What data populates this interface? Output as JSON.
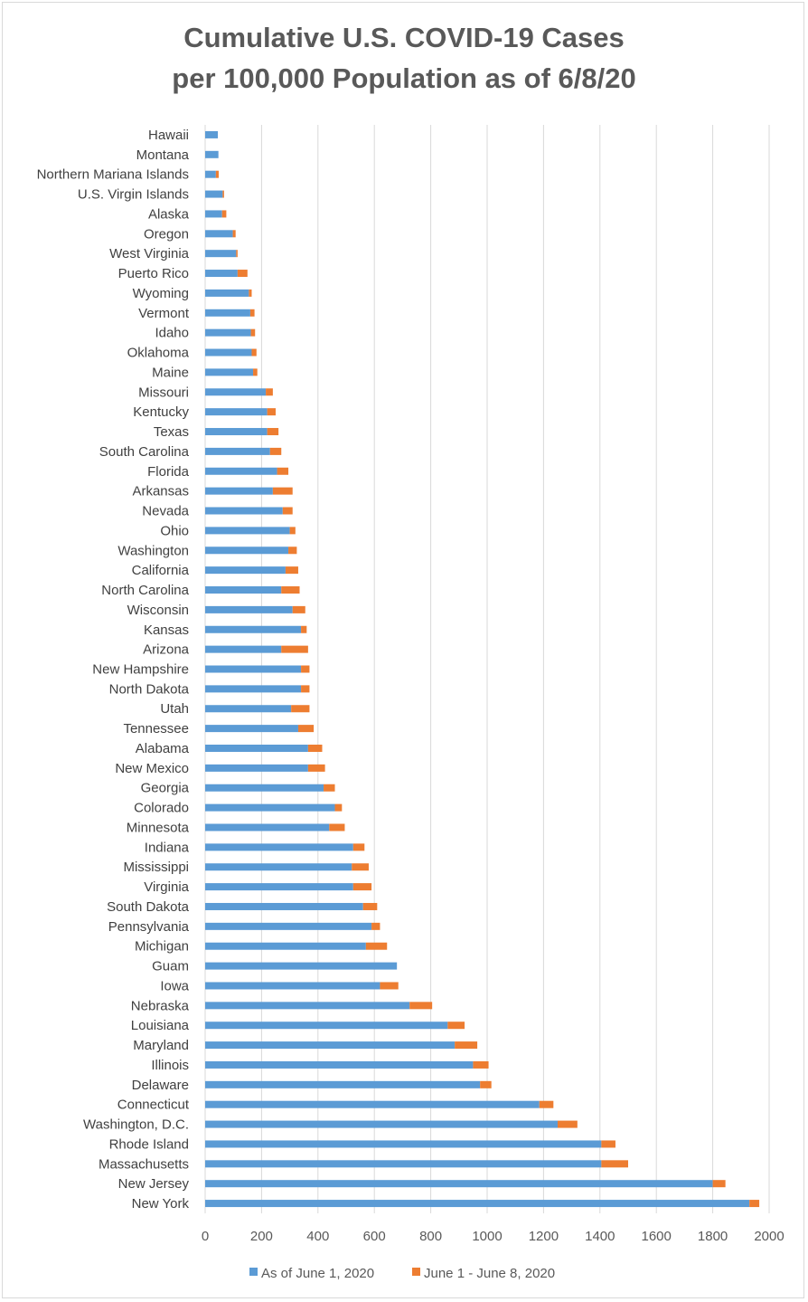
{
  "chart_data": {
    "type": "bar",
    "orientation": "horizontal",
    "stacked": true,
    "title_lines": [
      "Cumulative U.S. COVID-19 Cases",
      "per 100,000 Population as of 6/8/20"
    ],
    "xlabel": "",
    "ylabel": "",
    "xlim": [
      0,
      2000
    ],
    "xticks": [
      "0",
      "200",
      "400",
      "600",
      "800",
      "1000",
      "1200",
      "1400",
      "1600",
      "1800",
      "2000"
    ],
    "grid": "vertical",
    "legend_position": "bottom",
    "colors": {
      "series1": "#5b9bd5",
      "series2": "#ed7d31",
      "grid": "#d9d9d9",
      "title": "#595959"
    },
    "categories": [
      "Hawaii",
      "Montana",
      "Northern Mariana Islands",
      "U.S. Virgin Islands",
      "Alaska",
      "Oregon",
      "West Virginia",
      "Puerto Rico",
      "Wyoming",
      "Vermont",
      "Idaho",
      "Oklahoma",
      "Maine",
      "Missouri",
      "Kentucky",
      "Texas",
      "South Carolina",
      "Florida",
      "Arkansas",
      "Nevada",
      "Ohio",
      "Washington",
      "California",
      "North Carolina",
      "Wisconsin",
      "Kansas",
      "Arizona",
      "New Hampshire",
      "North Dakota",
      "Utah",
      "Tennessee",
      "Alabama",
      "New Mexico",
      "Georgia",
      "Colorado",
      "Minnesota",
      "Indiana",
      "Mississippi",
      "Virginia",
      "South Dakota",
      "Pennsylvania",
      "Michigan",
      "Guam",
      "Iowa",
      "Nebraska",
      "Louisiana",
      "Maryland",
      "Illinois",
      "Delaware",
      "Connecticut",
      "Washington, D.C.",
      "Rhode Island",
      "Massachusetts",
      "New Jersey",
      "New York"
    ],
    "series": [
      {
        "name": "As of June 1, 2020",
        "values": [
          45,
          47,
          38,
          62,
          60,
          98,
          110,
          115,
          155,
          160,
          162,
          165,
          170,
          215,
          220,
          220,
          230,
          255,
          240,
          275,
          300,
          295,
          285,
          270,
          310,
          340,
          270,
          340,
          340,
          305,
          330,
          365,
          365,
          420,
          460,
          440,
          525,
          520,
          525,
          560,
          590,
          570,
          680,
          620,
          725,
          860,
          885,
          950,
          975,
          1185,
          1250,
          1405,
          1405,
          1800,
          1930
        ]
      },
      {
        "name": "June 1 - June 8, 2020",
        "values": [
          0,
          0,
          10,
          5,
          15,
          10,
          5,
          35,
          10,
          15,
          15,
          17,
          15,
          25,
          30,
          40,
          40,
          40,
          70,
          35,
          20,
          30,
          45,
          65,
          45,
          20,
          95,
          30,
          30,
          65,
          55,
          50,
          60,
          40,
          25,
          55,
          40,
          60,
          65,
          50,
          30,
          75,
          0,
          65,
          80,
          60,
          80,
          55,
          40,
          50,
          70,
          50,
          95,
          45,
          35
        ]
      }
    ]
  }
}
